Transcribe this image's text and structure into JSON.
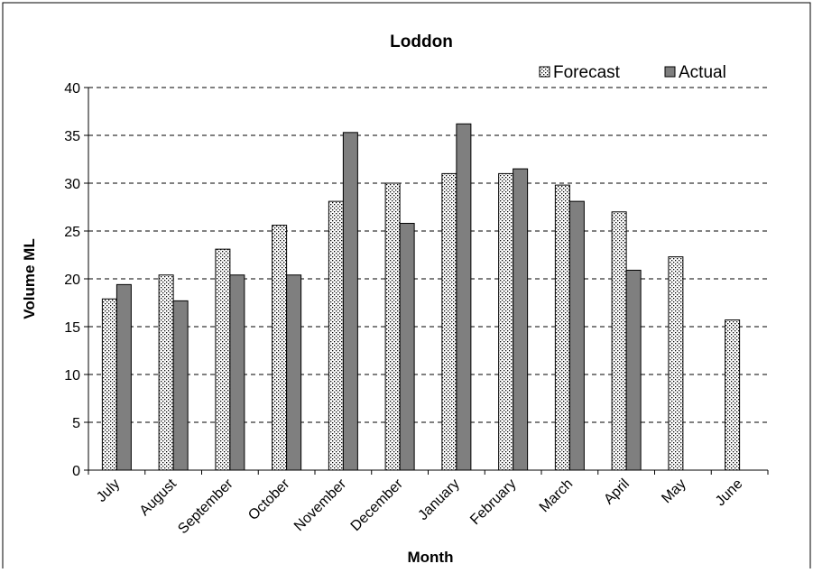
{
  "chart_data": {
    "type": "bar",
    "title": "Loddon",
    "xlabel": "Month",
    "ylabel": "Volume ML",
    "ylim": [
      0,
      40
    ],
    "yticks": [
      0,
      5,
      10,
      15,
      20,
      25,
      30,
      35,
      40
    ],
    "grid": "horizontal-dashed",
    "legend_position": "top-right",
    "categories": [
      "July",
      "August",
      "September",
      "October",
      "November",
      "December",
      "January",
      "February",
      "March",
      "April",
      "May",
      "June"
    ],
    "series": [
      {
        "name": "Forecast",
        "pattern": "dotted",
        "color": "#ffffff",
        "values": [
          17.9,
          20.4,
          23.1,
          25.6,
          28.1,
          30.0,
          31.0,
          31.0,
          29.8,
          27.0,
          22.3,
          15.7
        ]
      },
      {
        "name": "Actual",
        "pattern": "solid",
        "color": "#7f7f7f",
        "values": [
          19.4,
          17.7,
          20.4,
          20.4,
          35.3,
          25.8,
          36.2,
          31.5,
          28.1,
          20.9,
          null,
          null
        ]
      }
    ]
  }
}
